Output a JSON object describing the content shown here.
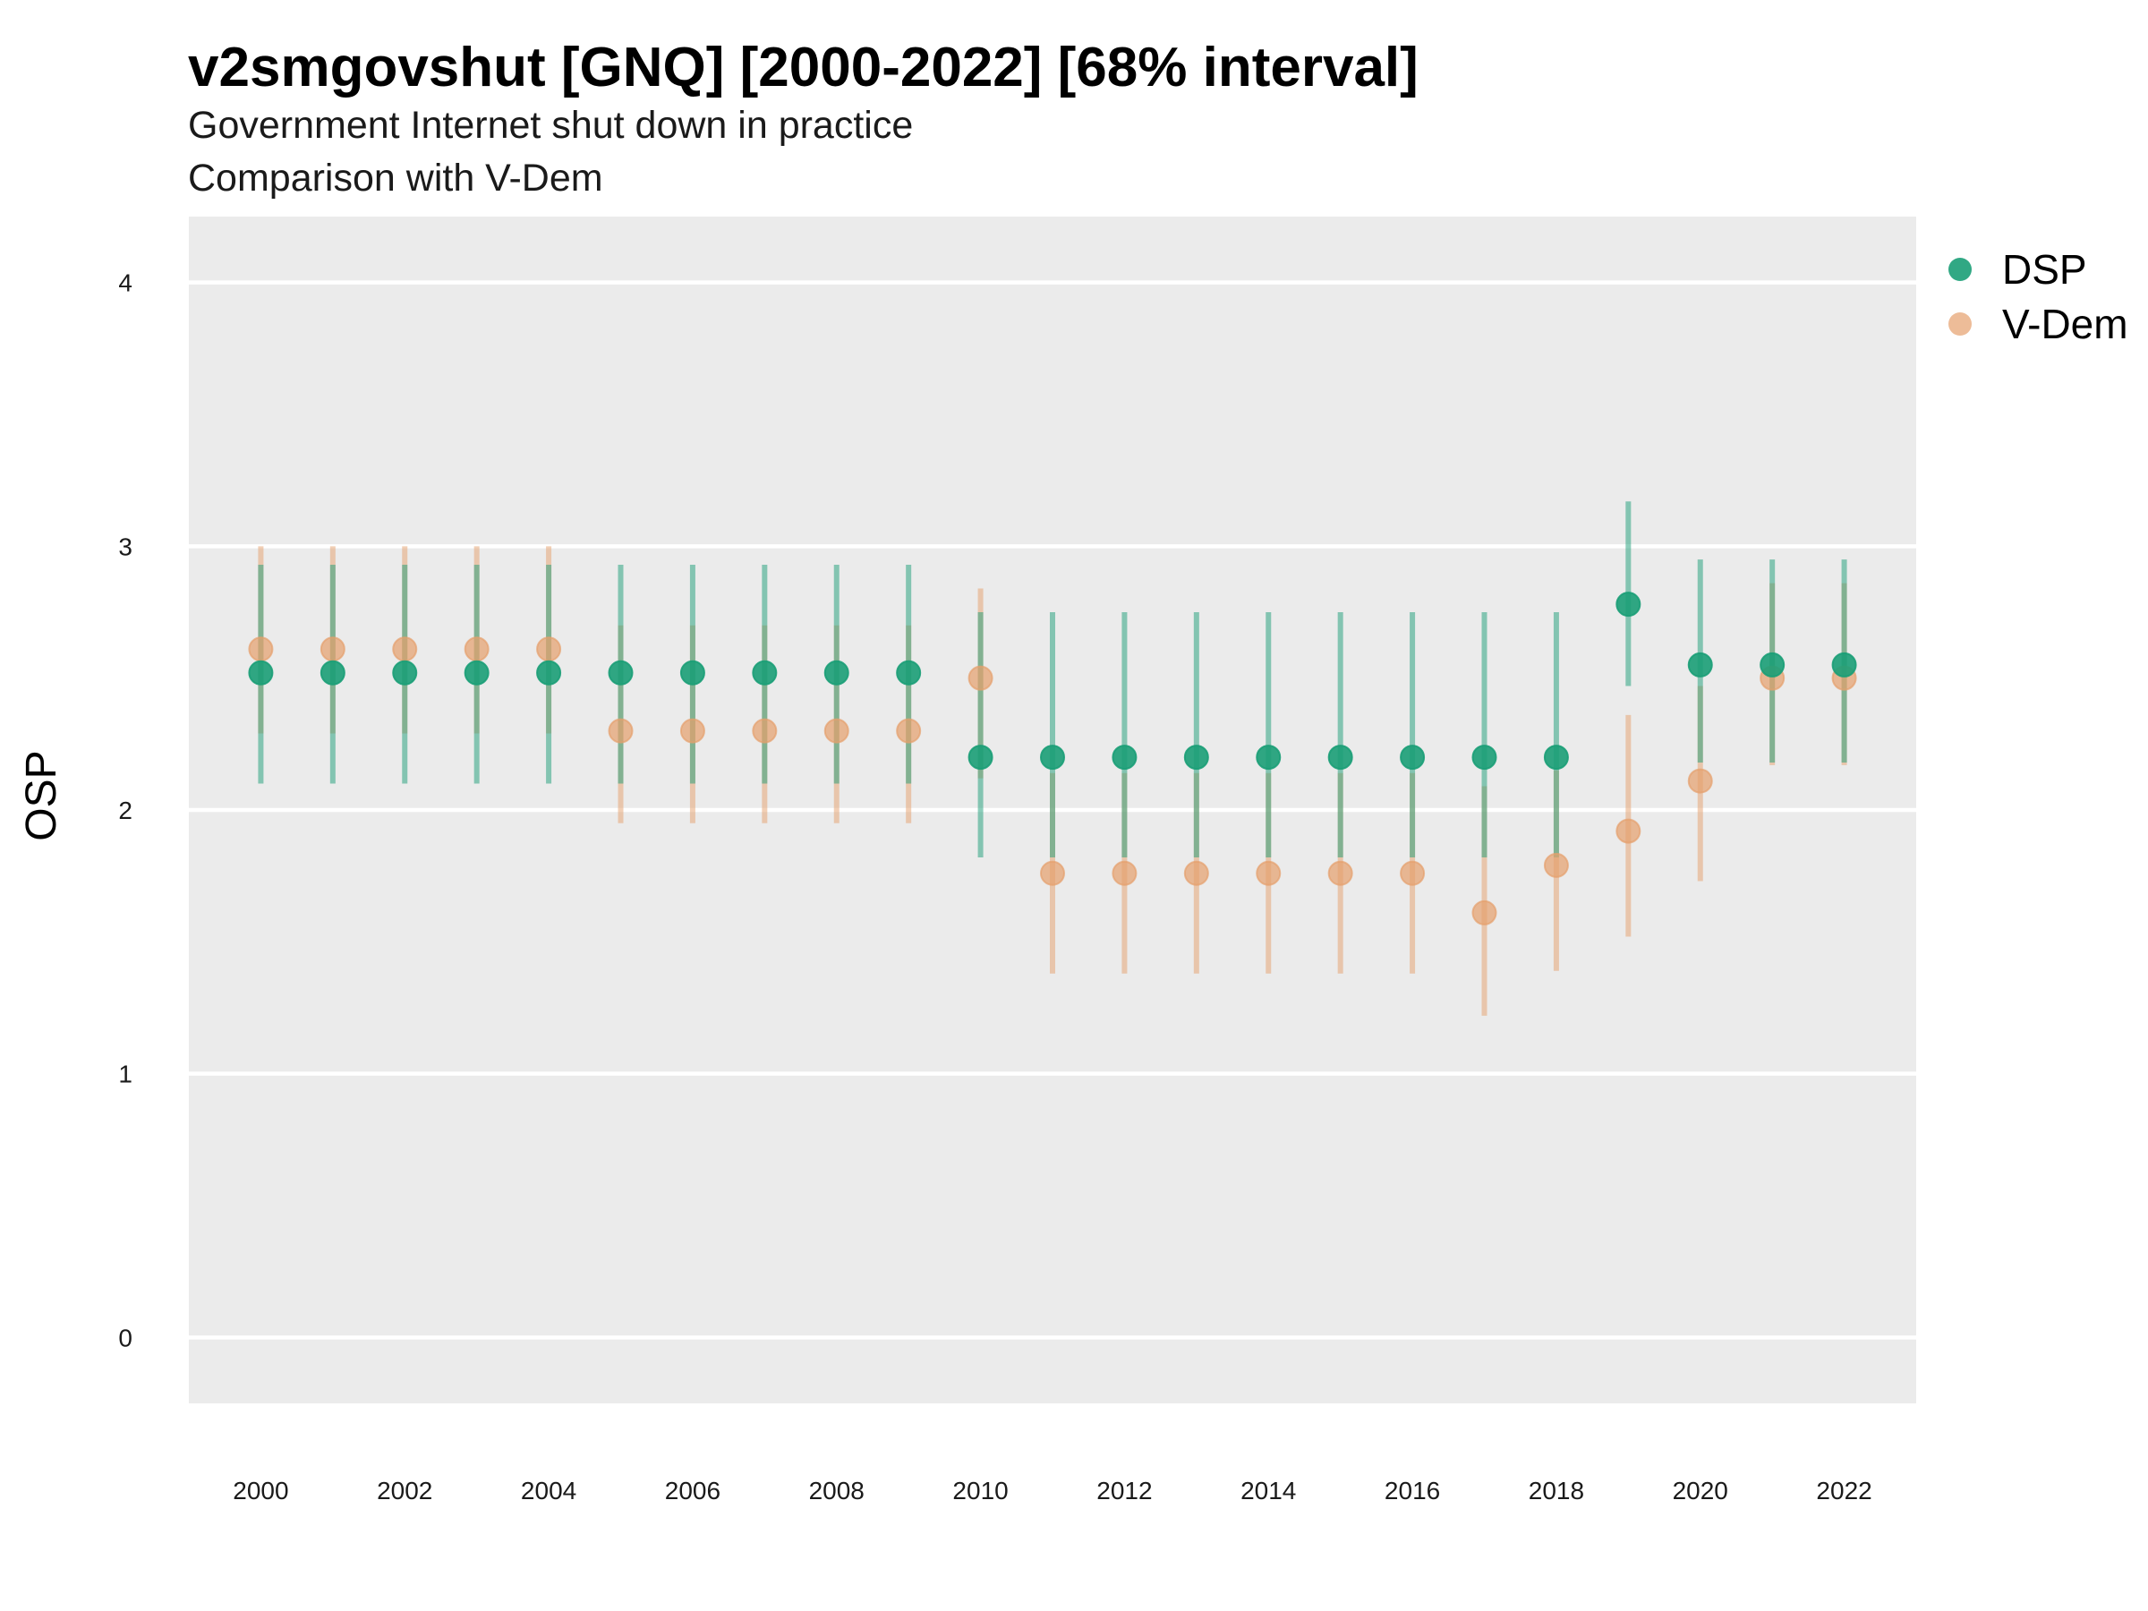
{
  "title": "v2smgovshut [GNQ] [2000-2022] [68% interval]",
  "subtitle_line1": "Government Internet shut down in practice",
  "subtitle_line2": "Comparison with V-Dem",
  "colors": {
    "panel": "#ebebeb",
    "grid": "#ffffff",
    "dsp": "#1b9e77",
    "vdem": "#e6a06c"
  },
  "chart_data": {
    "type": "scatter",
    "title": "v2smgovshut [GNQ] [2000-2022] [68% interval]",
    "subtitle": "Government Internet shut down in practice / Comparison with V-Dem",
    "xlabel": "",
    "ylabel": "OSP",
    "ylim": [
      -0.25,
      4.25
    ],
    "y_ticks": [
      "0",
      "1",
      "2",
      "3",
      "4"
    ],
    "x_ticks": [
      "2000",
      "2002",
      "2004",
      "2006",
      "2008",
      "2010",
      "2012",
      "2014",
      "2016",
      "2018",
      "2020",
      "2022"
    ],
    "grid": true,
    "legend_position": "right",
    "x": [
      2000,
      2001,
      2002,
      2003,
      2004,
      2005,
      2006,
      2007,
      2008,
      2009,
      2010,
      2011,
      2012,
      2013,
      2014,
      2015,
      2016,
      2017,
      2018,
      2019,
      2020,
      2021,
      2022
    ],
    "series": [
      {
        "name": "DSP",
        "values": [
          2.52,
          2.52,
          2.52,
          2.52,
          2.52,
          2.52,
          2.52,
          2.52,
          2.52,
          2.52,
          2.2,
          2.2,
          2.2,
          2.2,
          2.2,
          2.2,
          2.2,
          2.2,
          2.2,
          2.78,
          2.55,
          2.55,
          2.55
        ],
        "lower": [
          2.1,
          2.1,
          2.1,
          2.1,
          2.1,
          2.1,
          2.1,
          2.1,
          2.1,
          2.1,
          1.82,
          1.82,
          1.82,
          1.82,
          1.82,
          1.82,
          1.82,
          1.82,
          1.82,
          2.47,
          2.18,
          2.18,
          2.18
        ],
        "upper": [
          2.93,
          2.93,
          2.93,
          2.93,
          2.93,
          2.93,
          2.93,
          2.93,
          2.93,
          2.93,
          2.75,
          2.75,
          2.75,
          2.75,
          2.75,
          2.75,
          2.75,
          2.75,
          2.75,
          3.17,
          2.95,
          2.95,
          2.95
        ]
      },
      {
        "name": "V-Dem",
        "values": [
          2.61,
          2.61,
          2.61,
          2.61,
          2.61,
          2.3,
          2.3,
          2.3,
          2.3,
          2.3,
          2.5,
          1.76,
          1.76,
          1.76,
          1.76,
          1.76,
          1.76,
          1.61,
          1.79,
          1.92,
          2.11,
          2.5,
          2.5
        ],
        "lower": [
          2.29,
          2.29,
          2.29,
          2.29,
          2.29,
          1.95,
          1.95,
          1.95,
          1.95,
          1.95,
          2.12,
          1.38,
          1.38,
          1.38,
          1.38,
          1.38,
          1.38,
          1.22,
          1.39,
          1.52,
          1.73,
          2.17,
          2.17
        ],
        "upper": [
          3.0,
          3.0,
          3.0,
          3.0,
          3.0,
          2.7,
          2.7,
          2.7,
          2.7,
          2.7,
          2.84,
          2.14,
          2.14,
          2.14,
          2.14,
          2.14,
          2.14,
          2.09,
          2.15,
          2.36,
          2.47,
          2.86,
          2.86
        ]
      }
    ]
  }
}
